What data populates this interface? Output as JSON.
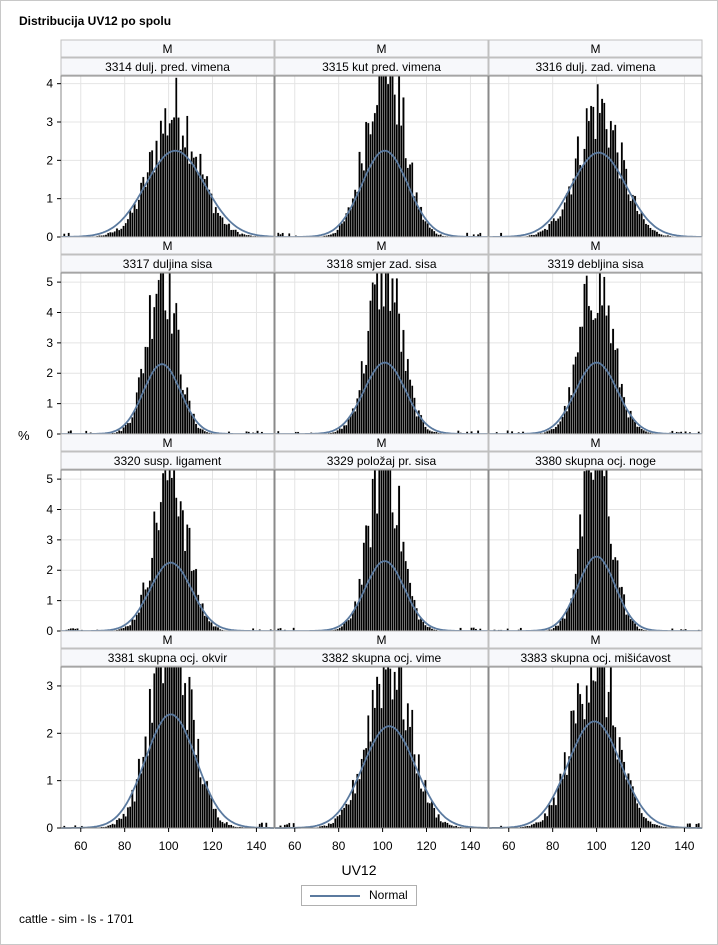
{
  "title": "Distribucija UV12 po spolu",
  "footer": "cattle - sim - ls - 1701",
  "xlabel": "UV12",
  "ylabel": "%",
  "legend": {
    "label": "Normal"
  },
  "colors": {
    "bars": "#000000",
    "curve": "#5b7a9f",
    "header_bg": "#f7f8fb",
    "grid": "#e4e4e4"
  },
  "chart_data": {
    "type": "bar",
    "subtype": "histogram-panel",
    "group_label": "M",
    "x_ticks": [
      60,
      80,
      100,
      120,
      140
    ],
    "xlim": [
      51,
      148
    ],
    "grid": true,
    "legend_position": "bottom-center",
    "rows": [
      {
        "ylim": [
          0,
          4.2
        ],
        "y_ticks": [
          0,
          1,
          2,
          3,
          4
        ]
      },
      {
        "ylim": [
          0,
          5.3
        ],
        "y_ticks": [
          0,
          1,
          2,
          3,
          4,
          5
        ]
      },
      {
        "ylim": [
          0,
          5.3
        ],
        "y_ticks": [
          0,
          1,
          2,
          3,
          4,
          5
        ]
      },
      {
        "ylim": [
          0,
          3.4
        ],
        "y_ticks": [
          0,
          1,
          2,
          3
        ]
      }
    ],
    "panels": [
      {
        "label": "3314 dulj. pred. vimena",
        "mean": 103,
        "sd": 13.5,
        "peak": 2.5,
        "normal_peak": 2.25
      },
      {
        "label": "3315 kut pred. vimena",
        "mean": 101,
        "sd": 10.5,
        "peak": 4.1,
        "normal_peak": 2.25
      },
      {
        "label": "3316 dulj. zad. vimena",
        "mean": 101,
        "sd": 12.5,
        "peak": 2.6,
        "normal_peak": 2.2
      },
      {
        "label": "3317 duljina sisa",
        "mean": 97,
        "sd": 8.5,
        "peak": 4.8,
        "normal_peak": 2.3
      },
      {
        "label": "3318 smjer zad. sisa",
        "mean": 101,
        "sd": 9.5,
        "peak": 4.7,
        "normal_peak": 2.35
      },
      {
        "label": "3319 debljina sisa",
        "mean": 100,
        "sd": 9.5,
        "peak": 4.3,
        "normal_peak": 2.35
      },
      {
        "label": "3320 susp. ligament",
        "mean": 101,
        "sd": 9.5,
        "peak": 4.6,
        "normal_peak": 2.25
      },
      {
        "label": "3329 položaj pr. sisa",
        "mean": 101,
        "sd": 9.0,
        "peak": 5.0,
        "normal_peak": 2.3
      },
      {
        "label": "3380 skupna ocj. noge",
        "mean": 100,
        "sd": 8.5,
        "peak": 5.0,
        "normal_peak": 2.45
      },
      {
        "label": "3381 skupna ocj. okvir",
        "mean": 101,
        "sd": 11.5,
        "peak": 3.25,
        "normal_peak": 2.4
      },
      {
        "label": "3382 skupna ocj. vime",
        "mean": 103,
        "sd": 12.0,
        "peak": 2.85,
        "normal_peak": 2.15
      },
      {
        "label": "3383 skupna ocj. mišićavost",
        "mean": 99,
        "sd": 12.0,
        "peak": 2.85,
        "normal_peak": 2.25
      }
    ]
  }
}
